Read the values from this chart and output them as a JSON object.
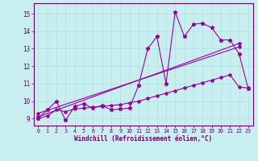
{
  "xlabel": "Windchill (Refroidissement éolien,°C)",
  "background_color": "#c8eef0",
  "line_color": "#990099",
  "grid_color": "#aadddd",
  "xlim": [
    -0.5,
    23.5
  ],
  "ylim": [
    8.6,
    15.6
  ],
  "xticks": [
    0,
    1,
    2,
    3,
    4,
    5,
    6,
    7,
    8,
    9,
    10,
    11,
    12,
    13,
    14,
    15,
    16,
    17,
    18,
    19,
    20,
    21,
    22,
    23
  ],
  "yticks": [
    9,
    10,
    11,
    12,
    13,
    14,
    15
  ],
  "line1_x": [
    0,
    1,
    2,
    3,
    4,
    5,
    6,
    7,
    8,
    9,
    10,
    11,
    12,
    13,
    14,
    15,
    16,
    17,
    18,
    19,
    20,
    21,
    22,
    23
  ],
  "line1_y": [
    9.0,
    9.5,
    10.0,
    8.9,
    9.7,
    9.85,
    9.6,
    9.75,
    9.5,
    9.55,
    9.6,
    10.9,
    13.0,
    13.7,
    11.0,
    15.1,
    13.7,
    14.4,
    14.45,
    14.2,
    13.5,
    13.5,
    12.7,
    10.7
  ],
  "line2_x": [
    0,
    22
  ],
  "line2_y": [
    9.1,
    13.3
  ],
  "line3_x": [
    0,
    22
  ],
  "line3_y": [
    9.3,
    13.1
  ],
  "line4_x": [
    0,
    1,
    2,
    3,
    4,
    5,
    6,
    7,
    8,
    9,
    10,
    11,
    12,
    13,
    14,
    15,
    16,
    17,
    18,
    19,
    20,
    21,
    22,
    23
  ],
  "line4_y": [
    9.0,
    9.15,
    9.5,
    9.4,
    9.55,
    9.6,
    9.65,
    9.7,
    9.75,
    9.8,
    9.9,
    10.0,
    10.15,
    10.3,
    10.45,
    10.6,
    10.75,
    10.9,
    11.05,
    11.2,
    11.35,
    11.5,
    10.8,
    10.75
  ]
}
